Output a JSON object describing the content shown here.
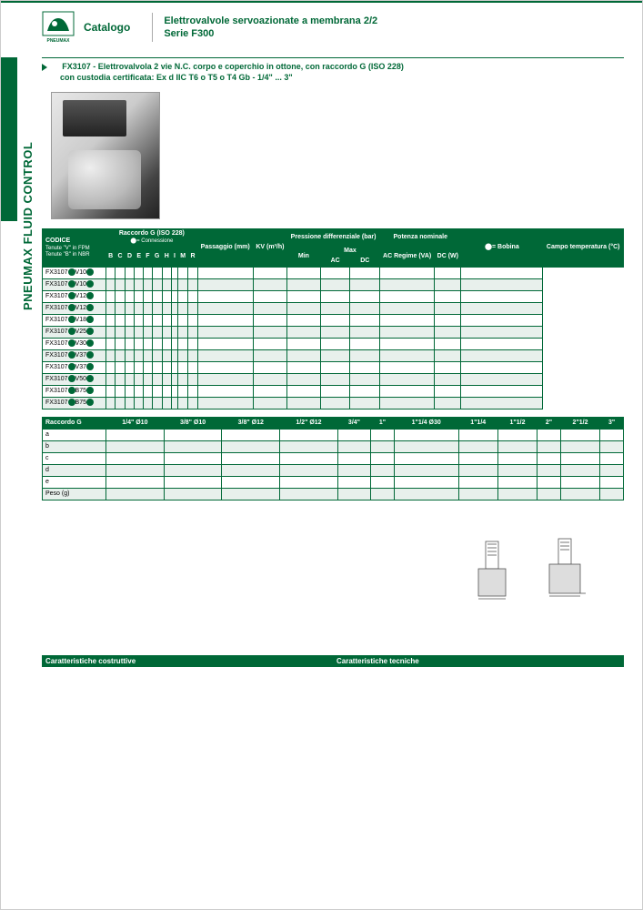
{
  "brand": "PNEUMAX",
  "catalog_label": "Catalogo",
  "header_title_1": "Elettrovalvole servoazionate a membrana 2/2",
  "header_title_2": "Serie F300",
  "side_label": "PNEUMAX FLUID CONTROL",
  "title_line_1": "FX3107 - Elettrovalvola 2 vie N.C. corpo e coperchio in ottone, con raccordo G (ISO 228)",
  "title_line_2": "con custodia certificata: Ex d IIC T6 o T5 o T4 Gb - 1/4\" ... 3\"",
  "main_table": {
    "headers": {
      "codice": "CODICE",
      "codice_sub1": "Tenute \"V\" in FPM",
      "codice_sub2": "Tenute \"B\" in NBR",
      "raccordo": "Raccordo G (ISO 228)",
      "raccordo_sub": "⬤= Connessione",
      "raccordo_cols": [
        "B",
        "C",
        "D",
        "E",
        "F",
        "G",
        "H",
        "I",
        "M",
        "R"
      ],
      "passaggio": "Passaggio (mm)",
      "kv": "KV (m³/h)",
      "pressione": "Pressione differenziale (bar)",
      "min": "Min",
      "max": "Max",
      "ac": "AC",
      "dc": "DC",
      "potenza": "Potenza nominale",
      "ac_regime": "AC Regime (VA)",
      "dc_w": "DC (W)",
      "bobina": "⬤= Bobina",
      "campo": "Campo temperatura (°C)"
    },
    "rows": [
      "FX3107⬤V10⬤",
      "FX3107⬤V10⬤",
      "FX3107⬤V12⬤",
      "FX3107⬤V12⬤",
      "FX3107⬤V18⬤",
      "FX3107⬤V25⬤",
      "FX3107⬤V30⬤",
      "FX3107⬤V37⬤",
      "FX3107⬤V37⬤",
      "FX3107⬤V50⬤",
      "FX3107⬤B75⬤",
      "FX3107⬤B75⬤"
    ]
  },
  "racc_table": {
    "header": "Raccordo G",
    "cols": [
      "1/4\" Ø10",
      "3/8\" Ø10",
      "3/8\" Ø12",
      "1/2\" Ø12",
      "3/4\"",
      "1\"",
      "1\"1/4 Ø30",
      "1\"1/4",
      "1\"1/2",
      "2\"",
      "2\"1/2",
      "3\""
    ],
    "rows": [
      "a",
      "b",
      "c",
      "d",
      "e",
      "Peso (g)"
    ]
  },
  "char": {
    "costruttive": "Caratteristiche costruttive",
    "tecniche": "Caratteristiche tecniche"
  },
  "colors": {
    "green": "#006837",
    "row_alt": "#e8f0ec"
  }
}
